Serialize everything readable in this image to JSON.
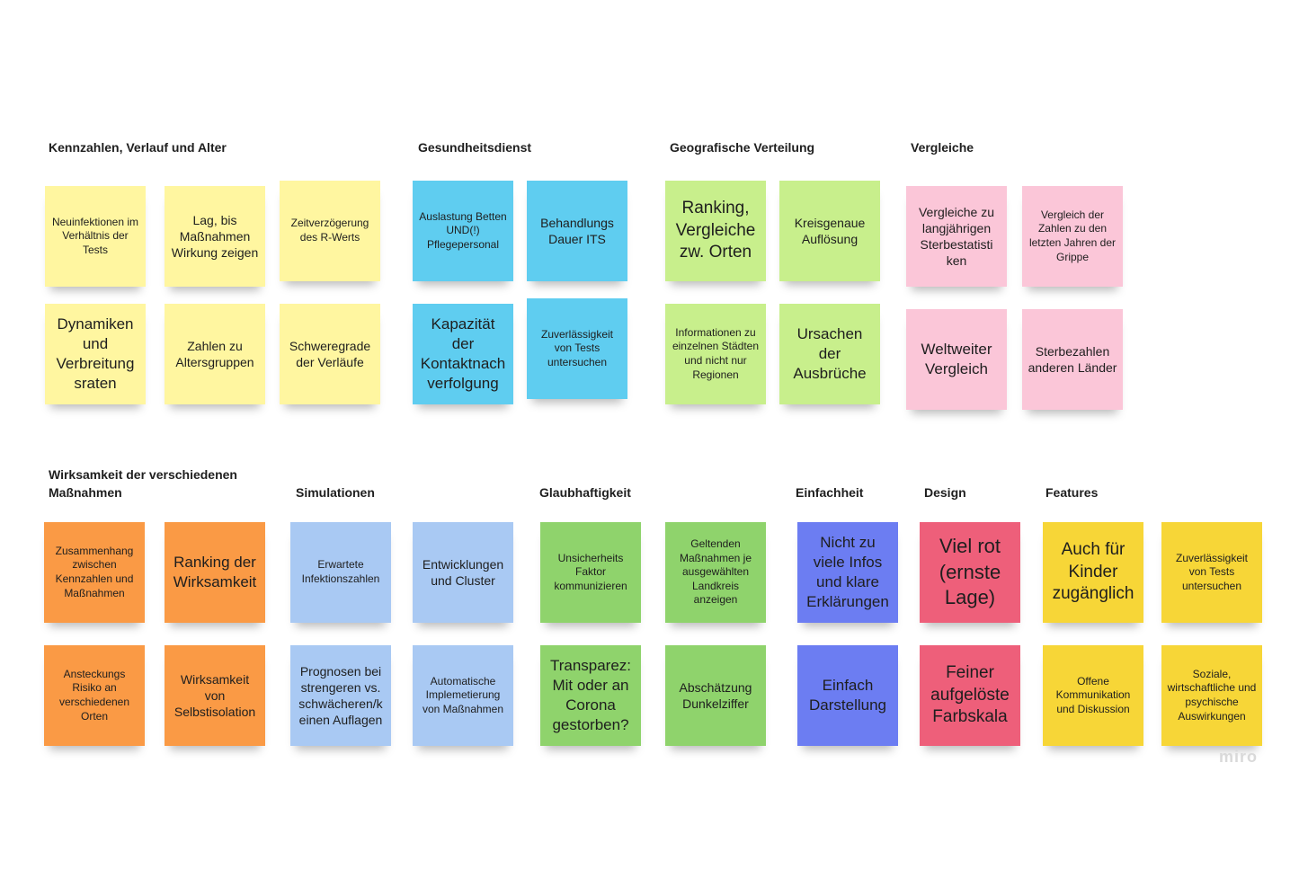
{
  "colors": {
    "yellow": "#fff6a0",
    "cyan": "#5fcdf0",
    "lime": "#c8ef8c",
    "pink": "#fbc6d8",
    "orange": "#fa9a45",
    "lightblue": "#a9c9f3",
    "green": "#8fd36c",
    "blue": "#6c7df2",
    "red": "#ee5f7a",
    "gold": "#f7d637"
  },
  "sections": {
    "kennzahlen": "Kennzahlen, Verlauf und Alter",
    "gesundheit": "Gesundheitsdienst",
    "geo": "Geografische Verteilung",
    "vergleiche": "Vergleiche",
    "wirksamkeit": "Wirksamkeit der verschiedenen\nMaßnahmen",
    "simulationen": "Simulationen",
    "glaubhaftigkeit": "Glaubhaftigkeit",
    "einfachheit": "Einfachheit",
    "design": "Design",
    "features": "Features"
  },
  "notes": {
    "n1": "Neuinfektionen im Verhältnis der Tests",
    "n2": "Lag, bis Maßnahmen Wirkung zeigen",
    "n3": "Zeitverzögerung des R-Werts",
    "n4": "Dynamiken und Verbreitung sraten",
    "n5": "Zahlen zu Altersgruppen",
    "n6": "Schweregrade der Verläufe",
    "n7": "Auslastung Betten UND(!) Pflegepersonal",
    "n8": "Behandlungs Dauer ITS",
    "n9": "Kapazität der Kontaktnach verfolgung",
    "n10": "Zuverlässigkeit von Tests untersuchen",
    "n11": "Ranking, Vergleiche zw. Orten",
    "n12": "Kreisgenaue Auflösung",
    "n13": "Informationen zu einzelnen Städten und nicht nur Regionen",
    "n14": "Ursachen der Ausbrüche",
    "n15": "Vergleiche zu langjährigen Sterbestatisti ken",
    "n16": "Vergleich der Zahlen zu den letzten Jahren der Grippe",
    "n17": "Weltweiter Vergleich",
    "n18": "Sterbezahlen anderen Länder",
    "n19": "Zusammenhang zwischen Kennzahlen und Maßnahmen",
    "n20": "Ranking der Wirksamkeit",
    "n21": "Ansteckungs Risiko an verschiedenen Orten",
    "n22": "Wirksamkeit von Selbstisolation",
    "n23": "Erwartete Infektionszahlen",
    "n24": "Entwicklungen und Cluster",
    "n25": "Prognosen bei strengeren vs. schwächeren/k einen Auflagen",
    "n26": "Automatische Implemetierung von Maßnahmen",
    "n27": "Unsicherheits Faktor kommunizieren",
    "n28": "Geltenden Maßnahmen je ausgewählten Landkreis anzeigen",
    "n29": "Transparez: Mit oder an Corona gestorben?",
    "n30": "Abschätzung Dunkelziffer",
    "n31": "Nicht zu viele Infos und klare Erklärungen",
    "n32": "Einfach Darstellung",
    "n33": "Viel rot (ernste Lage)",
    "n34": "Feiner aufgelöste Farbskala",
    "n35": "Auch für Kinder zugänglich",
    "n36": "Zuverlässigkeit von Tests untersuchen",
    "n37": "Offene Kommunikation und Diskussion",
    "n38": "Soziale, wirtschaftliche und psychische Auswirkungen"
  },
  "logo": "miro"
}
